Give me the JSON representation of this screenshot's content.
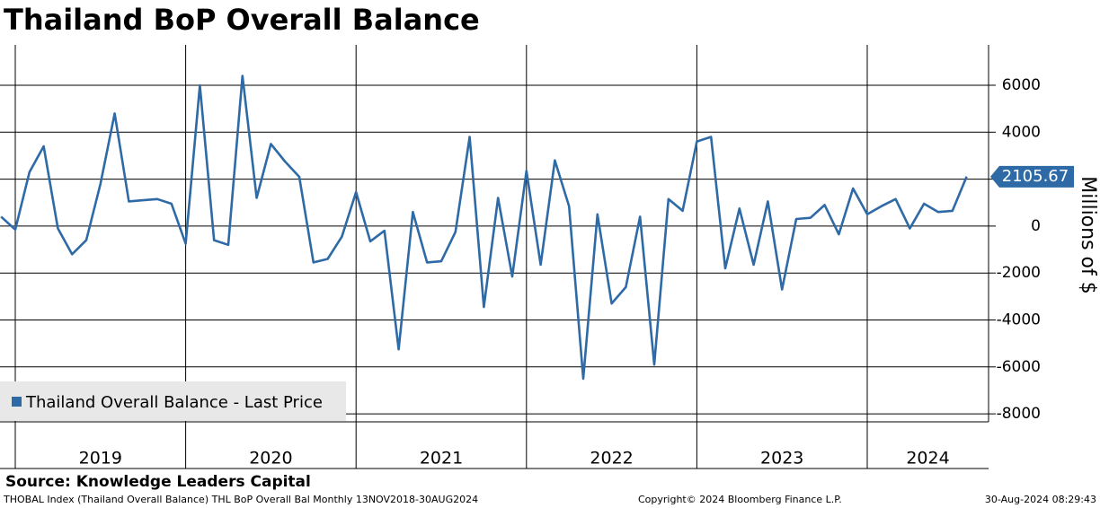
{
  "chart_data": {
    "type": "line",
    "title": "Thailand BoP Overall Balance",
    "y_label": "Millions of $",
    "categories": [
      null,
      null,
      null,
      null,
      null,
      null,
      null,
      null,
      null,
      null,
      null,
      null,
      null,
      null,
      null,
      null,
      null,
      null,
      null,
      null,
      null,
      null,
      null,
      null,
      null,
      null,
      null,
      null,
      null,
      null,
      null,
      null,
      null,
      null,
      null,
      null,
      null,
      null,
      null,
      null,
      null,
      null,
      null,
      null,
      null,
      null,
      null,
      null,
      null,
      null,
      null,
      null,
      null,
      null,
      null,
      null,
      null,
      null,
      null,
      null,
      null,
      null,
      null,
      null,
      null,
      null,
      null,
      null,
      null
    ],
    "year_labels": [
      "2019",
      "2020",
      "2021",
      "2022",
      "2023",
      "2024"
    ],
    "series": [
      {
        "name": "Thailand Overall Balance - Last Price",
        "color": "#2e6aa6",
        "values": [
          400,
          -150,
          2300,
          3400,
          -100,
          -1200,
          -600,
          1800,
          4800,
          1050,
          1100,
          1150,
          950,
          -750,
          6000,
          -600,
          -800,
          6400,
          1200,
          3500,
          2750,
          2100,
          -1550,
          -1400,
          -450,
          1450,
          -650,
          -200,
          -5250,
          600,
          -1550,
          -1500,
          -250,
          3800,
          -3450,
          1200,
          -2150,
          2350,
          -1650,
          2800,
          850,
          -6500,
          500,
          -3300,
          -2600,
          400,
          -5900,
          1150,
          650,
          3600,
          3800,
          -1800,
          750,
          -1650,
          1050,
          -2700,
          300,
          350,
          900,
          -350,
          1600,
          500,
          850,
          1150,
          -100,
          950,
          600,
          650,
          2105.67
        ]
      }
    ],
    "ylim": [
      -8340,
      7720
    ],
    "yticks": [
      -8000,
      -6000,
      -4000,
      -2000,
      0,
      2000,
      4000,
      6000
    ],
    "grid": true,
    "legend": "lower-left",
    "source": "Source: Knowledge Leaders Capital",
    "footer_left": "THOBAL Index (Thailand Overall Balance) THL BoP Overall Bal  Monthly 13NOV2018-30AUG2024",
    "footer_center": "Copyright© 2024 Bloomberg Finance L.P.",
    "footer_right": "30-Aug-2024 08:29:43"
  }
}
